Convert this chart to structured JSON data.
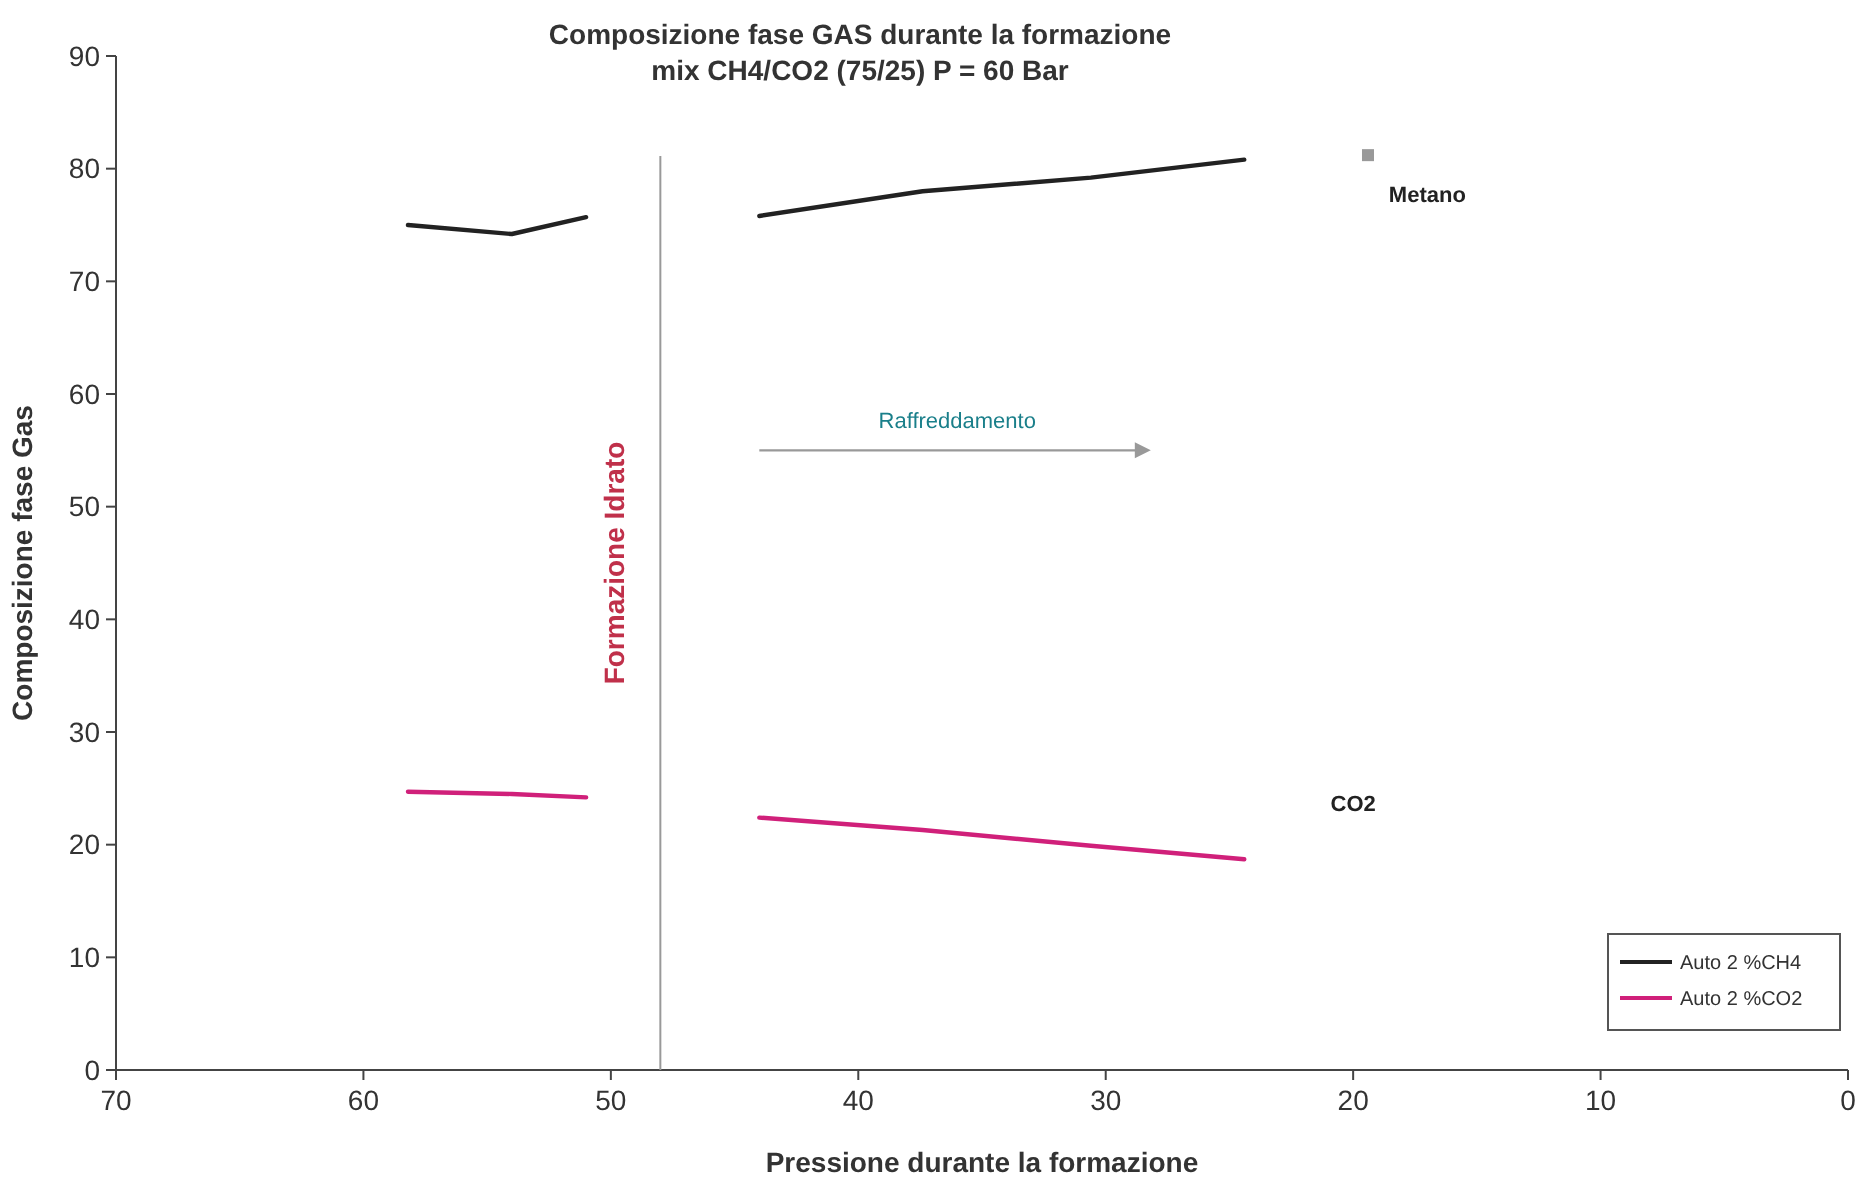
{
  "chart_data": {
    "type": "line",
    "title": "Composizione fase GAS durante la formazione",
    "subtitle": "mix CH4/CO2 (75/25) P = 60 Bar",
    "xlabel": "Pressione durante la formazione",
    "ylabel": "Composizione fase Gas",
    "xlim": [
      70,
      0
    ],
    "xticks": [
      70,
      60,
      50,
      40,
      30,
      20,
      10,
      0
    ],
    "ylim": [
      0,
      90
    ],
    "yticks": [
      0,
      10,
      20,
      30,
      40,
      50,
      60,
      70,
      80,
      90
    ],
    "grid": false,
    "legend": "bottom right",
    "marker": "none",
    "line_style": "solid",
    "series": [
      {
        "name": "Auto 2 %CH4",
        "color": "#222222",
        "x": [
          58.2,
          54,
          51,
          48,
          44,
          37.4,
          30.6,
          24.4
        ],
        "values": [
          75.0,
          74.2,
          75.7,
          null,
          75.8,
          78.0,
          79.2,
          80.8
        ]
      },
      {
        "name": "Auto 2 %CO2",
        "color": "#d0207a",
        "x": [
          58.2,
          54,
          51,
          48,
          44,
          37.4,
          30.6,
          24.4
        ],
        "values": [
          24.7,
          24.5,
          24.2,
          null,
          22.4,
          21.3,
          19.9,
          18.7
        ]
      },
      {
        "type": "scatter",
        "color": "#999999",
        "marker": "square",
        "x": [
          19.4
        ],
        "values": [
          81.2
        ]
      }
    ],
    "ref_lines": [
      {
        "axis": "x",
        "value": 48,
        "label": "Formazione Idrato",
        "color": "#999999"
      }
    ],
    "annotations": [
      "Raffreddamento",
      "Metano",
      "CO2"
    ]
  }
}
